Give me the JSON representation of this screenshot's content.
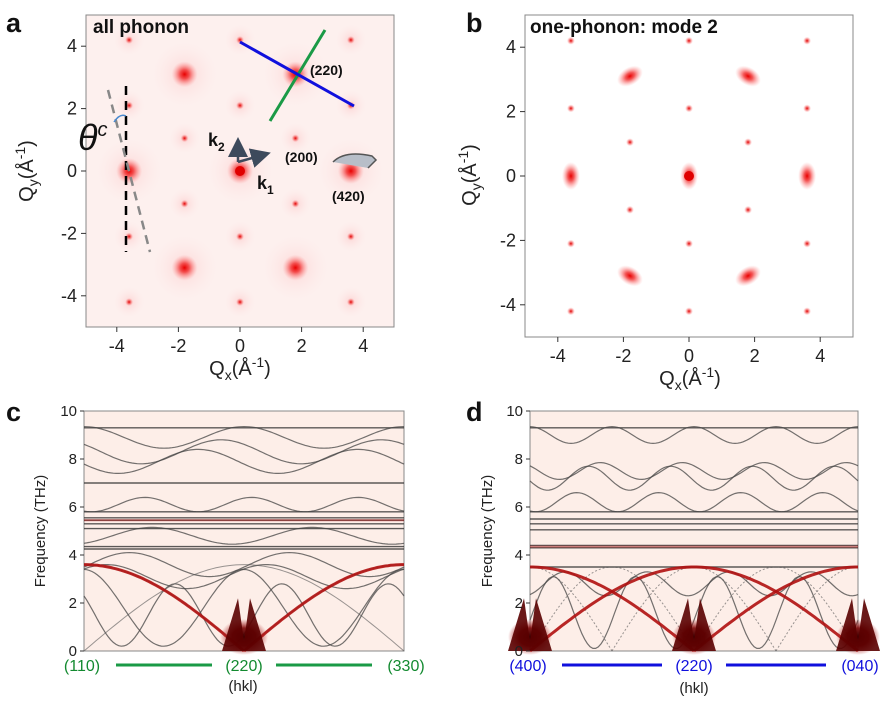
{
  "chart_data": [
    {
      "panel": "a",
      "type": "heatmap",
      "title": "all phonon",
      "xlabel": "Q_x(Å^-1)",
      "ylabel": "Q_y(Å^-1)",
      "xlim": [
        -5,
        5
      ],
      "ylim": [
        -5,
        5
      ],
      "xticks": [
        -4,
        -2,
        0,
        2,
        4
      ],
      "yticks": [
        -4,
        -2,
        0,
        2,
        4
      ],
      "tick_labels": [
        "-4",
        "-2",
        "0",
        "2",
        "4"
      ],
      "peaks": [
        {
          "x": 0,
          "y": 0,
          "strength": "strong"
        },
        {
          "x": 1.8,
          "y": 3.1,
          "strength": "strong"
        },
        {
          "x": -1.8,
          "y": 3.1,
          "strength": "strong"
        },
        {
          "x": 1.8,
          "y": -3.1,
          "strength": "strong"
        },
        {
          "x": -1.8,
          "y": -3.1,
          "strength": "strong"
        },
        {
          "x": 3.6,
          "y": 0,
          "strength": "strong"
        },
        {
          "x": -3.6,
          "y": 0,
          "strength": "strong"
        },
        {
          "x": 0,
          "y": 2.1,
          "strength": "weak"
        },
        {
          "x": 0,
          "y": -2.1,
          "strength": "weak"
        },
        {
          "x": 1.8,
          "y": 1.05,
          "strength": "weak"
        },
        {
          "x": -1.8,
          "y": 1.05,
          "strength": "weak"
        },
        {
          "x": 1.8,
          "y": -1.05,
          "strength": "weak"
        },
        {
          "x": -1.8,
          "y": -1.05,
          "strength": "weak"
        },
        {
          "x": 3.6,
          "y": 2.1,
          "strength": "weak"
        },
        {
          "x": -3.6,
          "y": 2.1,
          "strength": "weak"
        },
        {
          "x": 3.6,
          "y": -2.1,
          "strength": "weak"
        },
        {
          "x": -3.6,
          "y": -2.1,
          "strength": "weak"
        },
        {
          "x": 0,
          "y": 4.2,
          "strength": "weak"
        },
        {
          "x": 0,
          "y": -4.2,
          "strength": "weak"
        },
        {
          "x": 3.6,
          "y": 4.2,
          "strength": "weak"
        },
        {
          "x": -3.6,
          "y": 4.2,
          "strength": "weak"
        },
        {
          "x": 3.6,
          "y": -4.2,
          "strength": "weak"
        },
        {
          "x": -3.6,
          "y": -4.2,
          "strength": "weak"
        }
      ],
      "annotations": {
        "k1": "k",
        "k1_sub": "1",
        "k2": "k",
        "k2_sub": "2",
        "hkl_220": "(220)",
        "hkl_200": "(200)",
        "hkl_420": "(420)",
        "theta": "θ",
        "theta_sup": "c"
      },
      "line_colors": {
        "green": "#1a9a46",
        "blue": "#1010dd",
        "dash_black": "#000000",
        "dash_gray": "#808080"
      }
    },
    {
      "panel": "b",
      "type": "heatmap",
      "title": "one-phonon: mode 2",
      "xlabel": "Q_x(Å^-1)",
      "ylabel": "Q_y(Å^-1)",
      "xlim": [
        -5,
        5
      ],
      "ylim": [
        -5,
        5
      ],
      "xticks": [
        -4,
        -2,
        0,
        2,
        4
      ],
      "yticks": [
        -4,
        -2,
        0,
        2,
        4
      ],
      "tick_labels": [
        "-4",
        "-2",
        "0",
        "2",
        "4"
      ],
      "peaks": [
        {
          "x": 0,
          "y": 0,
          "strength": "strong"
        },
        {
          "x": 1.8,
          "y": 3.1,
          "strength": "strong"
        },
        {
          "x": -1.8,
          "y": 3.1,
          "strength": "strong"
        },
        {
          "x": 1.8,
          "y": -3.1,
          "strength": "strong"
        },
        {
          "x": -1.8,
          "y": -3.1,
          "strength": "strong"
        },
        {
          "x": 3.6,
          "y": 0,
          "strength": "strong"
        },
        {
          "x": -3.6,
          "y": 0,
          "strength": "strong"
        },
        {
          "x": 0,
          "y": 2.1,
          "strength": "weak"
        },
        {
          "x": 0,
          "y": -2.1,
          "strength": "weak"
        },
        {
          "x": 1.8,
          "y": 1.05,
          "strength": "weak"
        },
        {
          "x": -1.8,
          "y": 1.05,
          "strength": "weak"
        },
        {
          "x": 1.8,
          "y": -1.05,
          "strength": "weak"
        },
        {
          "x": -1.8,
          "y": -1.05,
          "strength": "weak"
        },
        {
          "x": 3.6,
          "y": 2.1,
          "strength": "weak"
        },
        {
          "x": -3.6,
          "y": 2.1,
          "strength": "weak"
        },
        {
          "x": 3.6,
          "y": -2.1,
          "strength": "weak"
        },
        {
          "x": -3.6,
          "y": -2.1,
          "strength": "weak"
        },
        {
          "x": 0,
          "y": 4.2,
          "strength": "weak"
        },
        {
          "x": 0,
          "y": -4.2,
          "strength": "weak"
        },
        {
          "x": 3.6,
          "y": 4.2,
          "strength": "weak"
        },
        {
          "x": -3.6,
          "y": 4.2,
          "strength": "weak"
        },
        {
          "x": 3.6,
          "y": -4.2,
          "strength": "weak"
        },
        {
          "x": -3.6,
          "y": -4.2,
          "strength": "weak"
        }
      ]
    },
    {
      "panel": "c",
      "type": "line",
      "ylabel": "Frequency (THz)",
      "xlabel": "(hkl)",
      "ylim": [
        0,
        10
      ],
      "yticks": [
        0,
        2,
        4,
        6,
        8,
        10
      ],
      "tick_labels": [
        "0",
        "2",
        "4",
        "6",
        "8",
        "10"
      ],
      "x_ticks": [
        "(110)",
        "(220)",
        "(330)"
      ],
      "x_tick_color": "#138a30",
      "path_color": "#1a9a46",
      "flat_bands": [
        9.3,
        7.0,
        5.8,
        5.55,
        5.45,
        5.3,
        5.1,
        4.35,
        4.25
      ],
      "osc_bands": [
        {
          "mean": 8.9,
          "amp": 0.45,
          "periods": 2
        },
        {
          "mean": 8.3,
          "amp": 0.5,
          "periods": 2
        },
        {
          "mean": 7.9,
          "amp": 0.5,
          "periods": 2
        },
        {
          "mean": 6.1,
          "amp": 0.3,
          "periods": 3
        },
        {
          "mean": 4.8,
          "amp": 0.35,
          "periods": 2
        },
        {
          "mean": 3.6,
          "amp": 0.5,
          "periods": 2
        },
        {
          "mean": 3.1,
          "amp": 0.5,
          "periods": 2
        },
        {
          "mean": 1.8,
          "amp": 1.6,
          "periods": 2
        },
        {
          "mean": 1.5,
          "amp": 1.3,
          "periods": 3
        }
      ],
      "acoustic_max_thz": 3.6,
      "highlight_color": "#b01010"
    },
    {
      "panel": "d",
      "type": "line",
      "ylabel": "Frequency (THz)",
      "xlabel": "(hkl)",
      "ylim": [
        0,
        10
      ],
      "yticks": [
        0,
        2,
        4,
        6,
        8,
        10
      ],
      "tick_labels": [
        "0",
        "2",
        "4",
        "6",
        "8",
        "10"
      ],
      "x_ticks": [
        "(400)",
        "(220)",
        "(040)"
      ],
      "x_tick_color": "#1010dd",
      "path_color": "#1010dd",
      "flat_bands": [
        9.3,
        5.8,
        5.5,
        5.3,
        5.05,
        4.4,
        4.3,
        3.5
      ],
      "osc_bands": [
        {
          "mean": 9.0,
          "amp": 0.35,
          "periods": 4
        },
        {
          "mean": 7.5,
          "amp": 0.35,
          "periods": 4
        },
        {
          "mean": 7.2,
          "amp": 0.5,
          "periods": 4
        },
        {
          "mean": 6.2,
          "amp": 0.4,
          "periods": 4
        },
        {
          "mean": 2.8,
          "amp": 0.5,
          "periods": 4
        },
        {
          "mean": 1.6,
          "amp": 1.5,
          "periods": 4
        }
      ],
      "acoustic_max_thz": 3.5,
      "highlight_color": "#b01010"
    }
  ]
}
